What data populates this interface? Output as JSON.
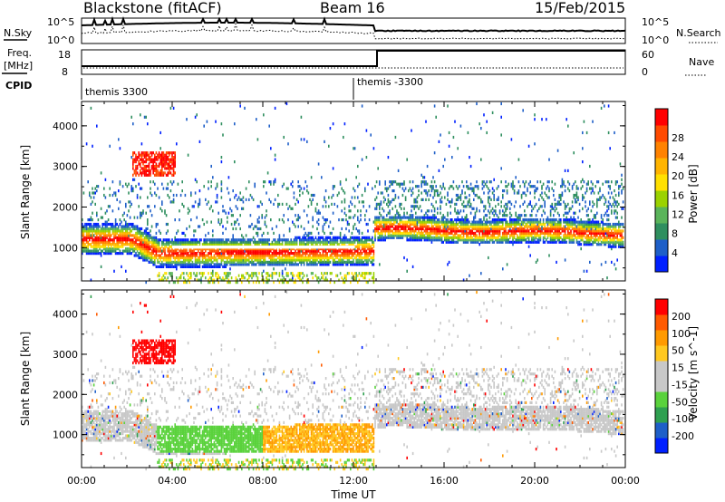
{
  "header": {
    "station": "Blackstone (fitACF)",
    "beam": "Beam 16",
    "date": "15/Feb/2015"
  },
  "labels": {
    "nsky": "N.Sky",
    "nsearch": "N.Search",
    "freq": "Freq.",
    "freq_unit": "[MHz]",
    "nave": "Nave",
    "cpid": "CPID",
    "log_high": "10^5",
    "log_low": "10^0",
    "freq_high": "18",
    "freq_low": "8",
    "nave_high": "60",
    "nave_low": "0"
  },
  "cpid_segments": [
    "themis 3300",
    "themis -3300"
  ],
  "colors": {
    "power_scale": [
      "#0020ff",
      "#1e5fc8",
      "#2f8f5f",
      "#5ab45a",
      "#9bd200",
      "#ffe000",
      "#ffb400",
      "#ff8200",
      "#ff4a00",
      "#ff0000"
    ],
    "velocity_scale": [
      "#ff0000",
      "#ff5a00",
      "#ff9a00",
      "#ffc820",
      "#c8c8c8",
      "#c8c8c8",
      "#5ad23c",
      "#2fa050",
      "#1e5fc8",
      "#0020ff"
    ]
  },
  "chart_data": [
    {
      "type": "heatmap",
      "title": "",
      "xlabel": "Time UT",
      "ylabel": "Slant Range [km]",
      "x_tick_labels": [
        "00:00",
        "04:00",
        "08:00",
        "12:00",
        "16:00",
        "20:00",
        "00:00"
      ],
      "y_tick_labels": [
        "1000",
        "2000",
        "3000",
        "4000"
      ],
      "xlim_hours": [
        0,
        24
      ],
      "ylim_km": [
        180,
        4600
      ],
      "colorbar_label": "Power [dB]",
      "colorbar_ticks": [
        "4",
        "8",
        "12",
        "16",
        "20",
        "24",
        "28"
      ],
      "colorbar_range": [
        0,
        30
      ]
    },
    {
      "type": "heatmap",
      "title": "",
      "xlabel": "Time UT",
      "ylabel": "Slant Range [km]",
      "x_tick_labels": [
        "00:00",
        "04:00",
        "08:00",
        "12:00",
        "16:00",
        "20:00",
        "00:00"
      ],
      "y_tick_labels": [
        "1000",
        "2000",
        "3000",
        "4000"
      ],
      "xlim_hours": [
        0,
        24
      ],
      "ylim_km": [
        180,
        4600
      ],
      "colorbar_label": "Velocity [m s^-1]",
      "colorbar_ticks": [
        "200",
        "100",
        "50",
        "15",
        "-15",
        "-50",
        "-100",
        "-200"
      ]
    }
  ]
}
